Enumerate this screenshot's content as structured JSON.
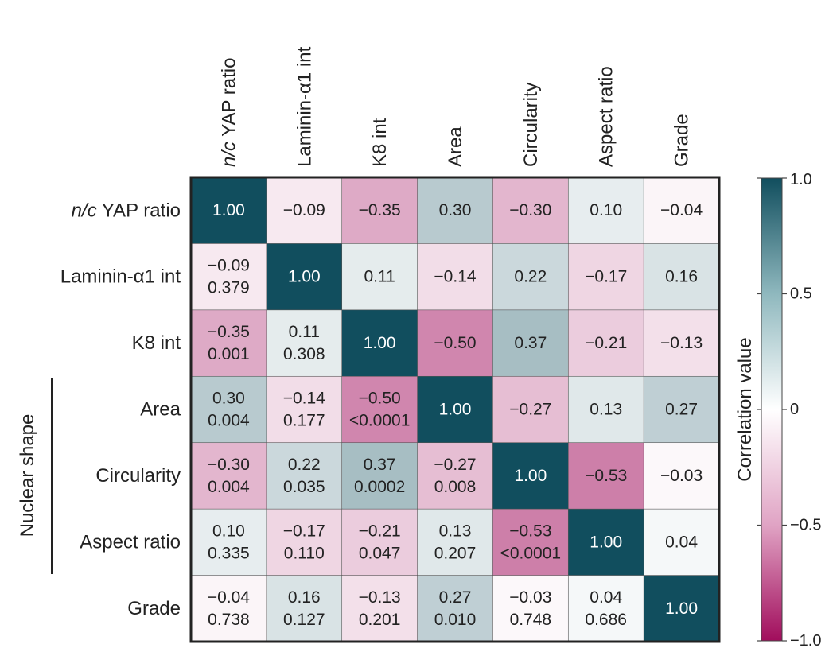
{
  "chart_data": {
    "type": "heatmap",
    "columns": [
      {
        "italic_prefix": "n/c",
        "text": " YAP ratio"
      },
      {
        "italic_prefix": "",
        "text": "Laminin-α1 int"
      },
      {
        "italic_prefix": "",
        "text": "K8 int"
      },
      {
        "italic_prefix": "",
        "text": "Area"
      },
      {
        "italic_prefix": "",
        "text": "Circularity"
      },
      {
        "italic_prefix": "",
        "text": "Aspect ratio"
      },
      {
        "italic_prefix": "",
        "text": "Grade"
      }
    ],
    "rows": [
      {
        "italic_prefix": "n/c",
        "text": " YAP ratio"
      },
      {
        "italic_prefix": "",
        "text": "Laminin-α1 int"
      },
      {
        "italic_prefix": "",
        "text": "K8 int"
      },
      {
        "italic_prefix": "",
        "text": "Area"
      },
      {
        "italic_prefix": "",
        "text": "Circularity"
      },
      {
        "italic_prefix": "",
        "text": "Aspect ratio"
      },
      {
        "italic_prefix": "",
        "text": "Grade"
      }
    ],
    "correlation": [
      [
        1.0,
        -0.09,
        -0.35,
        0.3,
        -0.3,
        0.1,
        -0.04
      ],
      [
        -0.09,
        1.0,
        0.11,
        -0.14,
        0.22,
        -0.17,
        0.16
      ],
      [
        -0.35,
        0.11,
        1.0,
        -0.5,
        0.37,
        -0.21,
        -0.13
      ],
      [
        0.3,
        -0.14,
        -0.5,
        1.0,
        -0.27,
        0.13,
        0.27
      ],
      [
        -0.3,
        0.22,
        0.37,
        -0.27,
        1.0,
        -0.53,
        -0.03
      ],
      [
        0.1,
        -0.17,
        -0.21,
        0.13,
        -0.53,
        1.0,
        0.04
      ],
      [
        -0.04,
        0.16,
        -0.13,
        0.27,
        -0.03,
        0.04,
        1.0
      ]
    ],
    "cell_labels": [
      [
        [
          "1.00"
        ],
        [
          "−0.09"
        ],
        [
          "−0.35"
        ],
        [
          "0.30"
        ],
        [
          "−0.30"
        ],
        [
          "0.10"
        ],
        [
          "−0.04"
        ]
      ],
      [
        [
          "−0.09",
          "0.379"
        ],
        [
          "1.00"
        ],
        [
          "0.11"
        ],
        [
          "−0.14"
        ],
        [
          "0.22"
        ],
        [
          "−0.17"
        ],
        [
          "0.16"
        ]
      ],
      [
        [
          "−0.35",
          "0.001"
        ],
        [
          "0.11",
          "0.308"
        ],
        [
          "1.00"
        ],
        [
          "−0.50"
        ],
        [
          "0.37"
        ],
        [
          "−0.21"
        ],
        [
          "−0.13"
        ]
      ],
      [
        [
          "0.30",
          "0.004"
        ],
        [
          "−0.14",
          "0.177"
        ],
        [
          "−0.50",
          "<0.0001"
        ],
        [
          "1.00"
        ],
        [
          "−0.27"
        ],
        [
          "0.13"
        ],
        [
          "0.27"
        ]
      ],
      [
        [
          "−0.30",
          "0.004"
        ],
        [
          "0.22",
          "0.035"
        ],
        [
          "0.37",
          "0.0002"
        ],
        [
          "−0.27",
          "0.008"
        ],
        [
          "1.00"
        ],
        [
          "−0.53"
        ],
        [
          "−0.03"
        ]
      ],
      [
        [
          "0.10",
          "0.335"
        ],
        [
          "−0.17",
          "0.110"
        ],
        [
          "−0.21",
          "0.047"
        ],
        [
          "0.13",
          "0.207"
        ],
        [
          "−0.53",
          "<0.0001"
        ],
        [
          "1.00"
        ],
        [
          "0.04"
        ]
      ],
      [
        [
          "−0.04",
          "0.738"
        ],
        [
          "0.16",
          "0.127"
        ],
        [
          "−0.13",
          "0.201"
        ],
        [
          "0.27",
          "0.010"
        ],
        [
          "−0.03",
          "0.748"
        ],
        [
          "0.04",
          "0.686"
        ],
        [
          "1.00"
        ]
      ]
    ],
    "group_label": {
      "text": "Nuclear shape",
      "row_start": 3,
      "row_end": 5
    },
    "colorbar": {
      "label": "Correlation value",
      "range": [
        -1.0,
        1.0
      ],
      "ticks": [
        {
          "value": 1.0,
          "label": "1.0"
        },
        {
          "value": 0.5,
          "label": "0.5"
        },
        {
          "value": 0,
          "label": "0"
        },
        {
          "value": -0.5,
          "label": "−0.5"
        },
        {
          "value": -1.0,
          "label": "−1.0"
        }
      ],
      "colors": {
        "positive": "#114e5e",
        "neutral": "#ffffff",
        "negative": "#a10d5c"
      }
    }
  }
}
